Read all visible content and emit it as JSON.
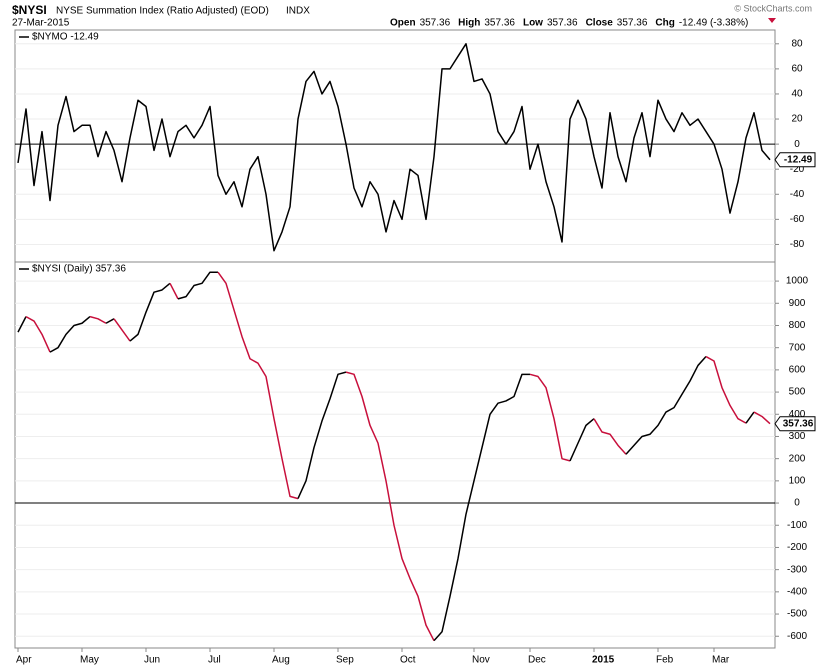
{
  "header": {
    "symbol": "$NYSI",
    "name": "NYSE Summation Index (Ratio Adjusted) (EOD)",
    "exchange": "INDX",
    "date": "27-Mar-2015",
    "quote": [
      {
        "label": "Open",
        "value": "357.36"
      },
      {
        "label": "High",
        "value": "357.36"
      },
      {
        "label": "Low",
        "value": "357.36"
      },
      {
        "label": "Close",
        "value": "357.36"
      },
      {
        "label": "Chg",
        "value": "-12.49 (-3.38%)"
      }
    ],
    "copyright": "© StockCharts.com"
  },
  "chart_data": [
    {
      "type": "line",
      "ylim": [
        -94,
        91
      ],
      "yticks": [
        80,
        60,
        40,
        20,
        0,
        -20,
        -40,
        -60,
        -80
      ],
      "grid": true,
      "series": [
        {
          "name": "$NYMO -12.49",
          "color": "#000000",
          "values": [
            -15,
            28,
            -33,
            10,
            -45,
            15,
            38,
            10,
            15,
            15,
            -10,
            10,
            -5,
            -30,
            5,
            35,
            30,
            -5,
            20,
            -10,
            10,
            15,
            5,
            15,
            30,
            -25,
            -40,
            -30,
            -50,
            -20,
            -10,
            -40,
            -85,
            -70,
            -50,
            20,
            50,
            58,
            40,
            50,
            30,
            0,
            -35,
            -50,
            -30,
            -40,
            -70,
            -45,
            -60,
            -20,
            -25,
            -60,
            -10,
            60,
            60,
            70,
            80,
            50,
            52,
            40,
            10,
            0,
            10,
            30,
            -20,
            0,
            -30,
            -50,
            -78,
            20,
            35,
            20,
            -10,
            -35,
            25,
            -10,
            -30,
            5,
            25,
            -10,
            35,
            20,
            10,
            25,
            15,
            20,
            10,
            0,
            -20,
            -55,
            -30,
            5,
            25,
            -5,
            -12.49
          ]
        }
      ]
    },
    {
      "type": "line",
      "ylim": [
        -653,
        1086
      ],
      "yticks": [
        1000,
        900,
        800,
        700,
        600,
        500,
        400,
        300,
        200,
        100,
        0,
        -100,
        -200,
        -300,
        -400,
        -500,
        -600
      ],
      "grid": true,
      "categories": [
        "Apr",
        null,
        null,
        null,
        null,
        null,
        null,
        null,
        "May",
        null,
        null,
        null,
        null,
        null,
        null,
        null,
        "Jun",
        null,
        null,
        null,
        null,
        null,
        null,
        null,
        "Jul",
        null,
        null,
        null,
        null,
        null,
        null,
        null,
        "Aug",
        null,
        null,
        null,
        null,
        null,
        null,
        null,
        "Sep",
        null,
        null,
        null,
        null,
        null,
        null,
        null,
        "Oct",
        null,
        null,
        null,
        null,
        null,
        null,
        null,
        null,
        "Nov",
        null,
        null,
        null,
        null,
        null,
        null,
        "Dec",
        null,
        null,
        null,
        null,
        null,
        null,
        null,
        "2015",
        null,
        null,
        null,
        null,
        null,
        null,
        null,
        "Feb",
        null,
        null,
        null,
        null,
        null,
        null,
        "Mar",
        null,
        null,
        null,
        null,
        null,
        null,
        null
      ],
      "series": [
        {
          "name": "$NYSI (Daily) 357.36",
          "color": "#000000",
          "falling_color": "#c8103c",
          "values": [
            770,
            840,
            820,
            760,
            680,
            700,
            760,
            800,
            810,
            840,
            830,
            810,
            830,
            780,
            730,
            760,
            860,
            950,
            960,
            990,
            920,
            930,
            980,
            990,
            1040,
            1040,
            990,
            870,
            750,
            650,
            630,
            570,
            380,
            200,
            30,
            20,
            100,
            250,
            370,
            470,
            580,
            590,
            580,
            480,
            350,
            270,
            100,
            -100,
            -250,
            -340,
            -420,
            -550,
            -620,
            -580,
            -420,
            -250,
            -50,
            100,
            250,
            400,
            450,
            460,
            480,
            580,
            580,
            570,
            520,
            380,
            200,
            190,
            270,
            350,
            380,
            320,
            310,
            260,
            220,
            260,
            300,
            310,
            350,
            410,
            430,
            490,
            550,
            620,
            660,
            640,
            520,
            440,
            380,
            360,
            410,
            390,
            357.36
          ]
        }
      ]
    }
  ]
}
